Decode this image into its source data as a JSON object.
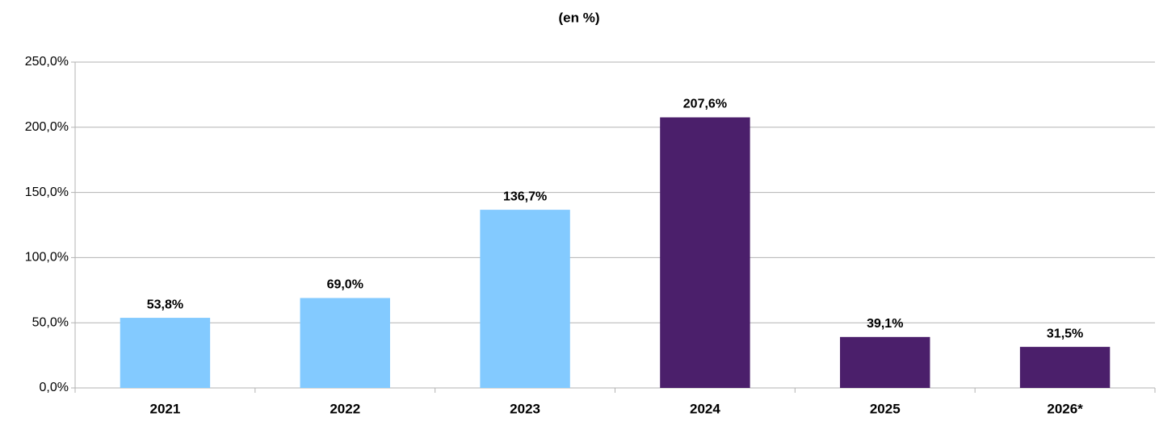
{
  "chart_data": {
    "type": "bar",
    "title": "(en %)",
    "categories": [
      "2021",
      "2022",
      "2023",
      "2024",
      "2025",
      "2026*"
    ],
    "values": [
      53.8,
      69.0,
      136.7,
      207.6,
      39.1,
      31.5
    ],
    "value_labels": [
      "53,8%",
      "69,0%",
      "136,7%",
      "207,6%",
      "39,1%",
      "31,5%"
    ],
    "colors": [
      "#83caff",
      "#83caff",
      "#83caff",
      "#4b1f6b",
      "#4b1f6b",
      "#4b1f6b"
    ],
    "ylim": [
      0,
      250
    ],
    "yticks": [
      {
        "value": 0,
        "label": "0,0%"
      },
      {
        "value": 50,
        "label": "50,0%"
      },
      {
        "value": 100,
        "label": "100,0%"
      },
      {
        "value": 150,
        "label": "150,0%"
      },
      {
        "value": 200,
        "label": "200,0%"
      },
      {
        "value": 250,
        "label": "250,0%"
      }
    ],
    "grid": true
  }
}
